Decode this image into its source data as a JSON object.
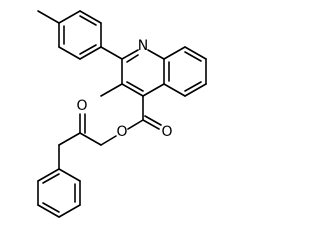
{
  "atom_labels": [
    "N",
    "O",
    "O",
    "O"
  ]
}
